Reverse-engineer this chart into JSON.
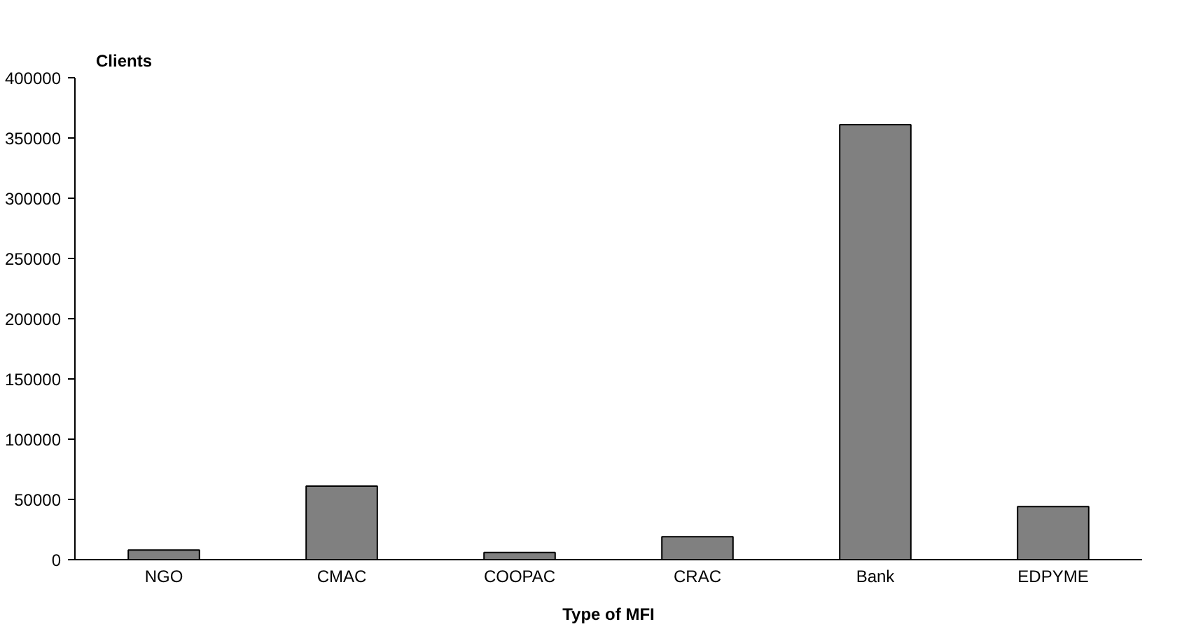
{
  "chart_data": {
    "type": "bar",
    "ylabel": "Clients",
    "xlabel": "Type of MFI",
    "categories": [
      "NGO",
      "CMAC",
      "COOPAC",
      "CRAC",
      "Bank",
      "EDPYME"
    ],
    "values": [
      8000,
      61000,
      6000,
      19000,
      361000,
      44000
    ],
    "color": "#808080",
    "ylim": [
      0,
      400000
    ],
    "yticks": [
      0,
      50000,
      100000,
      150000,
      200000,
      250000,
      300000,
      350000,
      400000
    ],
    "grid": false
  }
}
